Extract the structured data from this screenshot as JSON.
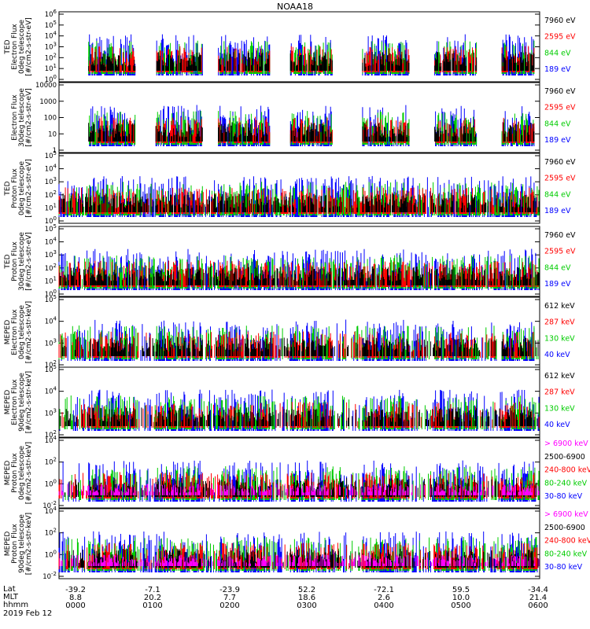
{
  "title": "NOAA18",
  "date_label": "2019 Feb 12",
  "row_labels": [
    "Lat",
    "MLT",
    "hhmm"
  ],
  "ticks": {
    "lat": [
      "-39.2",
      "-7.1",
      "-23.9",
      "52.2",
      "-72.1",
      "59.5",
      "-34.4"
    ],
    "mlt": [
      "8.8",
      "20.2",
      "7.7",
      "18.6",
      "2.6",
      "10.0",
      "21.4"
    ],
    "hhmm": [
      "0000",
      "0100",
      "0200",
      "0300",
      "0400",
      "0500",
      "0600"
    ]
  },
  "colors": {
    "black": "#000000",
    "red": "#ff0000",
    "green": "#00cc00",
    "blue": "#0000ff",
    "magenta": "#ff00ff"
  },
  "chart_data": [
    {
      "type": "line",
      "ylabel": [
        "TED",
        "Electron Flux",
        "0deg telescope",
        "[#/cm2-s-str-eV]"
      ],
      "yticks": [
        "10^0",
        "10^1",
        "10^2",
        "10^3",
        "10^4",
        "10^5",
        "10^6"
      ],
      "ylim": [
        1,
        1000000
      ],
      "log": true,
      "legend": [
        {
          "label": "7960 eV",
          "color": "black"
        },
        {
          "label": "2595 eV",
          "color": "red"
        },
        {
          "label": "844 eV",
          "color": "green"
        },
        {
          "label": "189 eV",
          "color": "blue"
        }
      ]
    },
    {
      "type": "line",
      "ylabel": [
        "Electron Flux",
        "30deg telescope",
        "[#/cm2-s-str-eV]"
      ],
      "yticks": [
        "1",
        "10",
        "100",
        "1000",
        "10000"
      ],
      "ylim": [
        1,
        10000
      ],
      "log": true,
      "legend": [
        {
          "label": "7960 eV",
          "color": "black"
        },
        {
          "label": "2595 eV",
          "color": "red"
        },
        {
          "label": "844 eV",
          "color": "green"
        },
        {
          "label": "189 eV",
          "color": "blue"
        }
      ]
    },
    {
      "type": "line",
      "ylabel": [
        "TED",
        "Proton Flux",
        "0deg telescope",
        "[#/cm2-s-str-eV]"
      ],
      "yticks": [
        "10^0",
        "10^1",
        "10^2",
        "10^3",
        "10^4",
        "10^5"
      ],
      "ylim": [
        1,
        100000
      ],
      "log": true,
      "legend": [
        {
          "label": "7960 eV",
          "color": "black"
        },
        {
          "label": "2595 eV",
          "color": "red"
        },
        {
          "label": "844 eV",
          "color": "green"
        },
        {
          "label": "189 eV",
          "color": "blue"
        }
      ]
    },
    {
      "type": "line",
      "ylabel": [
        "TED",
        "Proton Flux",
        "30deg telescope",
        "[#/cm2-s-str-eV]"
      ],
      "yticks": [
        "10^0",
        "10^1",
        "10^2",
        "10^3",
        "10^4",
        "10^5"
      ],
      "ylim": [
        1,
        100000
      ],
      "log": true,
      "legend": [
        {
          "label": "7960 eV",
          "color": "black"
        },
        {
          "label": "2595 eV",
          "color": "red"
        },
        {
          "label": "844 eV",
          "color": "green"
        },
        {
          "label": "189 eV",
          "color": "blue"
        }
      ]
    },
    {
      "type": "line",
      "ylabel": [
        "MEPED",
        "Electron Flux",
        "0deg telescope",
        "[#/cm2-s-str-keV]"
      ],
      "yticks": [
        "10^2",
        "10^3",
        "10^4",
        "10^5"
      ],
      "ylim": [
        100,
        100000
      ],
      "log": true,
      "legend": [
        {
          "label": "612 keV",
          "color": "black"
        },
        {
          "label": "287 keV",
          "color": "red"
        },
        {
          "label": "130 keV",
          "color": "green"
        },
        {
          "label": "40 keV",
          "color": "blue"
        }
      ]
    },
    {
      "type": "line",
      "ylabel": [
        "MEPED",
        "Electron Flux",
        "90deg telescope",
        "[#/cm2-s-str-keV]"
      ],
      "yticks": [
        "10^2",
        "10^3",
        "10^4",
        "10^5"
      ],
      "ylim": [
        100,
        100000
      ],
      "log": true,
      "legend": [
        {
          "label": "612 keV",
          "color": "black"
        },
        {
          "label": "287 keV",
          "color": "red"
        },
        {
          "label": "130 keV",
          "color": "green"
        },
        {
          "label": "40 keV",
          "color": "blue"
        }
      ]
    },
    {
      "type": "line",
      "ylabel": [
        "MEPED",
        "Proton Flux",
        "0deg telescope",
        "[#/cm2-s-str-keV]"
      ],
      "yticks": [
        "10^-2",
        "10^0",
        "10^2",
        "10^4"
      ],
      "ylim": [
        0.01,
        100000
      ],
      "log": true,
      "legend": [
        {
          "label": "> 6900 keV",
          "color": "magenta"
        },
        {
          "label": "2500-6900",
          "color": "black"
        },
        {
          "label": "240-800 keV",
          "color": "red"
        },
        {
          "label": "80-240 keV",
          "color": "green"
        },
        {
          "label": "30-80 keV",
          "color": "blue"
        }
      ]
    },
    {
      "type": "line",
      "ylabel": [
        "MEPED",
        "Proton Flux",
        "90deg telescope",
        "[#/cm2-s-str-keV]"
      ],
      "yticks": [
        "10^-2",
        "10^0",
        "10^2",
        "10^4"
      ],
      "ylim": [
        0.01,
        100000
      ],
      "log": true,
      "legend": [
        {
          "label": "> 6900 keV",
          "color": "magenta"
        },
        {
          "label": "2500-6900",
          "color": "black"
        },
        {
          "label": "240-800 keV",
          "color": "red"
        },
        {
          "label": "80-240 keV",
          "color": "green"
        },
        {
          "label": "30-80 keV",
          "color": "blue"
        }
      ]
    }
  ]
}
